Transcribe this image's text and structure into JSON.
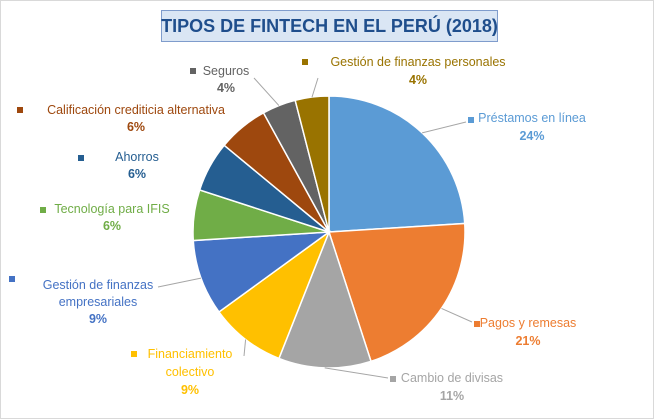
{
  "chart_data": {
    "type": "pie",
    "title": "TIPOS DE FINTECH EN EL PERÚ (2018)",
    "slices": [
      {
        "label": "Préstamos en línea",
        "value": 24,
        "value_label": "24%",
        "color": "#5b9bd5"
      },
      {
        "label": "Pagos y remesas",
        "value": 21,
        "value_label": "21%",
        "color": "#ed7d31"
      },
      {
        "label": "Cambio de divisas",
        "value": 11,
        "value_label": "11%",
        "color": "#a5a5a5"
      },
      {
        "label": "Financiamiento colectivo",
        "value": 9,
        "value_label": "9%",
        "color": "#ffc000"
      },
      {
        "label": "Gestión de finanzas empresariales",
        "value": 9,
        "value_label": "9%",
        "color": "#4472c4"
      },
      {
        "label": "Tecnología para IFIS",
        "value": 6,
        "value_label": "6%",
        "color": "#70ad47"
      },
      {
        "label": "Ahorros",
        "value": 6,
        "value_label": "6%",
        "color": "#255e91"
      },
      {
        "label": "Calificación crediticia alternativa",
        "value": 6,
        "value_label": "6%",
        "color": "#9e480e"
      },
      {
        "label": "Seguros",
        "value": 4,
        "value_label": "4%",
        "color": "#636363"
      },
      {
        "label": "Gestión de finanzas personales",
        "value": 4,
        "value_label": "4%",
        "color": "#997300"
      }
    ]
  }
}
